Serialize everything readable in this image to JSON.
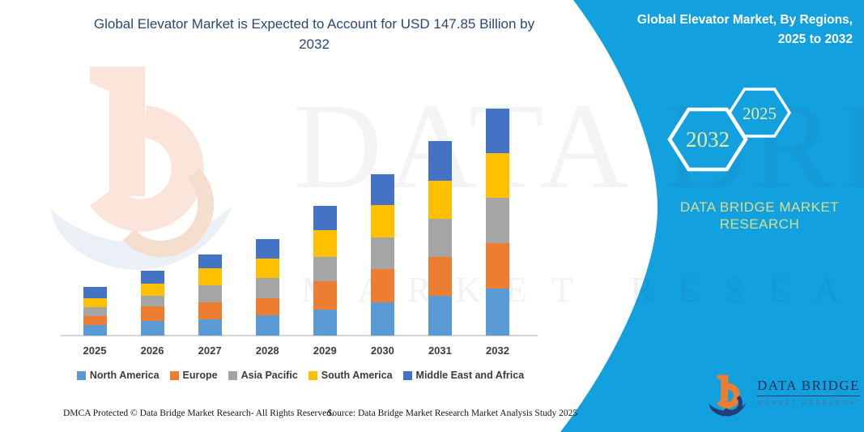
{
  "header": {
    "title_line1": "Global Elevator Market is Expected to Account for USD 147.85 Billion by",
    "title_line2": "2032"
  },
  "side_panel": {
    "heading_line1": "Global Elevator Market, By Regions,",
    "heading_line2": "2025 to 2032",
    "hexagons": [
      {
        "label": "2032"
      },
      {
        "label": "2025"
      }
    ],
    "brand_lines": [
      "DATA BRIDGE MARKET",
      "RESEARCH"
    ],
    "panel_color": "#13A0DF",
    "hex_text_color": "#E7EAA0",
    "brand_text_color": "#D9DE8C"
  },
  "watermark": {
    "row1": "DATA BRIDGE",
    "row2": "MARKET RESEARCH"
  },
  "logo": {
    "name_text": "DATA BRIDGE",
    "sub_text": "MARKET RESEARCH"
  },
  "footer": {
    "left": "DMCA Protected © Data Bridge Market Research-  All Rights Reserved.",
    "source": "Source: Data Bridge Market Research  Market Analysis Study 2025"
  },
  "chart_data": {
    "type": "bar",
    "stacked": true,
    "title": "Global Elevator Market is Expected to Account for USD 147.85 Billion by 2032",
    "unit": "USD Billion (values estimated from bar proportions; 2032 total = 147.85)",
    "categories": [
      "2025",
      "2026",
      "2027",
      "2028",
      "2029",
      "2030",
      "2031",
      "2032"
    ],
    "series": [
      {
        "name": "North America",
        "color": "#5B9BD5",
        "values": [
          6.9,
          9.7,
          10.6,
          13.2,
          17.1,
          21.8,
          25.7,
          30.8
        ]
      },
      {
        "name": "Europe",
        "color": "#ED7D31",
        "values": [
          6.0,
          9.4,
          11.0,
          11.1,
          18.3,
          21.5,
          25.4,
          29.6
        ]
      },
      {
        "name": "Asia Pacific",
        "color": "#A5A5A5",
        "values": [
          5.8,
          6.9,
          11.1,
          13.0,
          16.1,
          20.8,
          25.0,
          29.4
        ]
      },
      {
        "name": "South America",
        "color": "#FFC000",
        "values": [
          5.8,
          7.9,
          11.1,
          12.9,
          17.2,
          21.1,
          24.7,
          29.1
        ]
      },
      {
        "name": "Middle East and Africa",
        "color": "#4472C4",
        "values": [
          7.4,
          8.3,
          9.2,
          12.8,
          15.9,
          19.9,
          26.3,
          28.95
        ]
      }
    ],
    "totals": [
      31.9,
      42.2,
      53.0,
      63.0,
      84.6,
      105.1,
      127.1,
      147.85
    ],
    "xlabel": "",
    "ylabel": "",
    "ylim": [
      0,
      155
    ],
    "gridlines": false,
    "value_axis_shown": false,
    "legend_position": "bottom"
  }
}
